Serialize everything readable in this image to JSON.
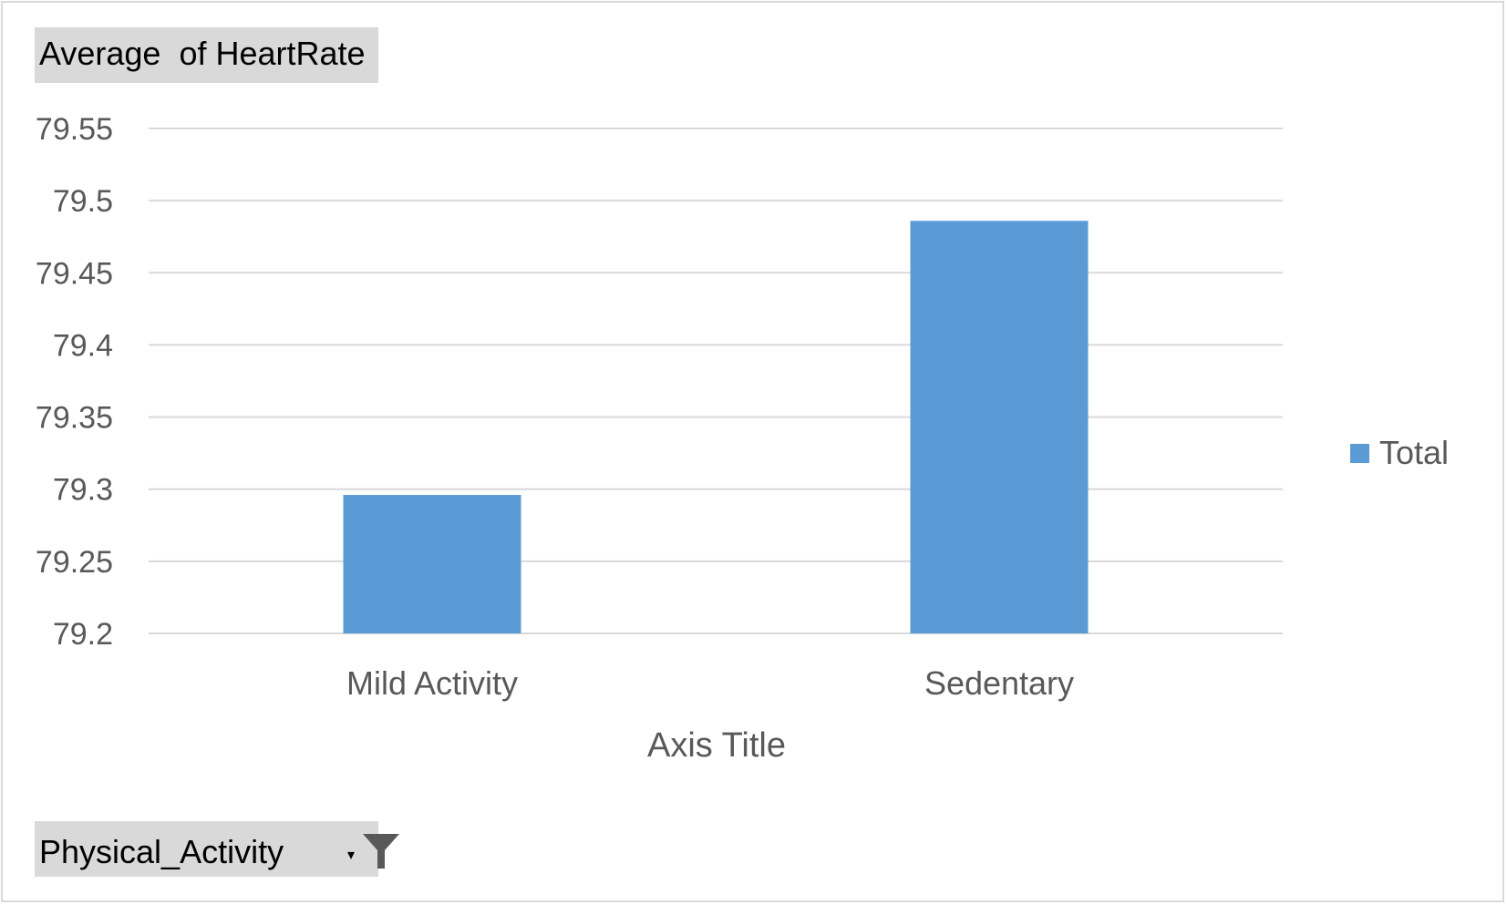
{
  "pivot": {
    "values_field": "Average  of HeartRate",
    "axis_field": "Physical_Activity"
  },
  "chart_data": {
    "type": "bar",
    "categories": [
      "Mild Activity",
      "Sedentary"
    ],
    "series": [
      {
        "name": "Total",
        "values": [
          79.296,
          79.486
        ],
        "color": "#5b9bd5"
      }
    ],
    "yticks": [
      "79.2",
      "79.25",
      "79.3",
      "79.35",
      "79.4",
      "79.45",
      "79.5",
      "79.55"
    ],
    "ylim": [
      79.2,
      79.55
    ],
    "xlabel": "Axis Title",
    "ylabel": "",
    "grid": true,
    "legend_position": "right"
  },
  "icons": {
    "filter": "filter-funnel-icon",
    "dropdown": "dropdown-arrow-icon"
  },
  "colors": {
    "bar": "#5b9bd5",
    "grid": "#d9d9d9",
    "text": "#595959",
    "field_button": "#d9d9d9"
  }
}
